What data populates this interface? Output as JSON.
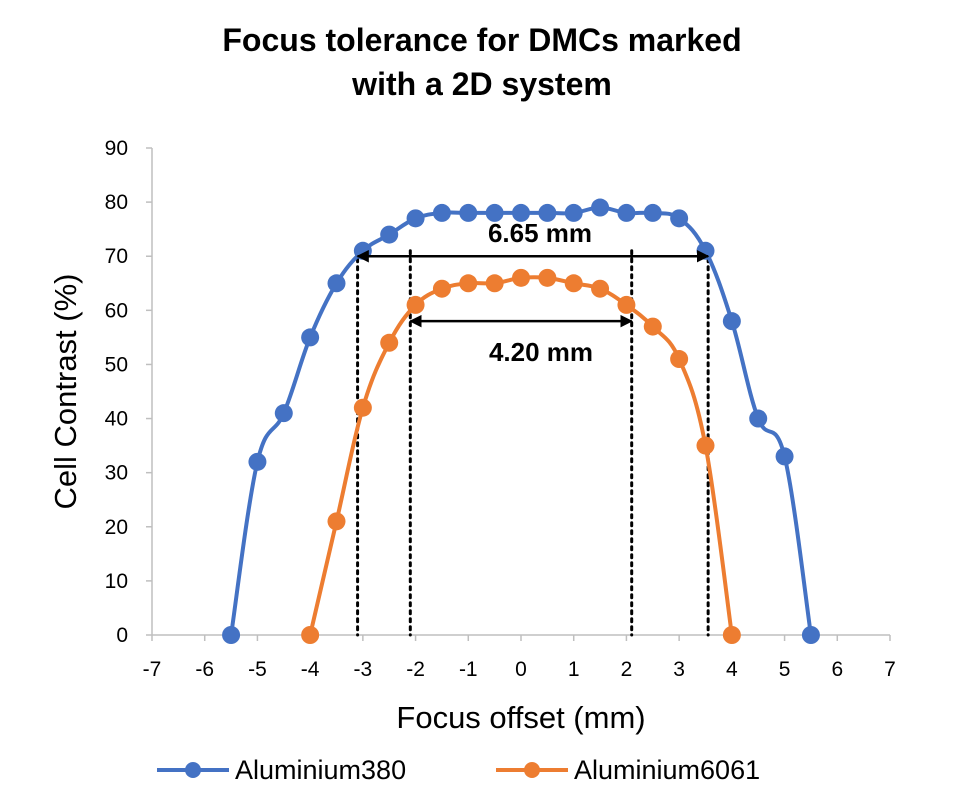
{
  "title_line1": "Focus tolerance for DMCs marked",
  "title_line2": "with a 2D system",
  "chart_data": {
    "type": "line",
    "title": "Focus tolerance for DMCs marked with a 2D system",
    "xlabel": "Focus offset (mm)",
    "ylabel": "Cell Contrast (%)",
    "xlim": [
      -7,
      7
    ],
    "ylim": [
      0,
      90
    ],
    "x_ticks": [
      -7,
      -6,
      -5,
      -4,
      -3,
      -2,
      -1,
      0,
      1,
      2,
      3,
      4,
      5,
      6,
      7
    ],
    "y_ticks": [
      0,
      10,
      20,
      30,
      40,
      50,
      60,
      70,
      80,
      90
    ],
    "grid": false,
    "legend_position": "bottom",
    "series": [
      {
        "name": "Aluminium380",
        "color": "#4472C4",
        "x": [
          -5.5,
          -5.0,
          -4.5,
          -4.0,
          -3.5,
          -3.0,
          -2.5,
          -2.0,
          -1.5,
          -1.0,
          -0.5,
          0.0,
          0.5,
          1.0,
          1.5,
          2.0,
          2.5,
          3.0,
          3.5,
          4.0,
          4.5,
          5.0,
          5.5
        ],
        "y": [
          0,
          32,
          41,
          55,
          65,
          71,
          74,
          77,
          78,
          78,
          78,
          78,
          78,
          78,
          79,
          78,
          78,
          77,
          71,
          58,
          40,
          33,
          0
        ]
      },
      {
        "name": "Aluminium6061",
        "color": "#ED7D31",
        "x": [
          -4.0,
          -3.5,
          -3.0,
          -2.5,
          -2.0,
          -1.5,
          -1.0,
          -0.5,
          0.0,
          0.5,
          1.0,
          1.5,
          2.0,
          2.5,
          3.0,
          3.5,
          4.0
        ],
        "y": [
          0,
          21,
          42,
          54,
          61,
          64,
          65,
          65,
          66,
          66,
          65,
          64,
          61,
          57,
          51,
          35,
          0
        ]
      }
    ],
    "annotations": [
      {
        "text": "6.65 mm",
        "from": -3.1,
        "to": 3.55,
        "y": 70
      },
      {
        "text": "4.20 mm",
        "from": -2.1,
        "to": 2.1,
        "y": 58
      }
    ],
    "reference_lines_x": [
      -3.1,
      3.55,
      -2.1,
      2.1
    ]
  }
}
